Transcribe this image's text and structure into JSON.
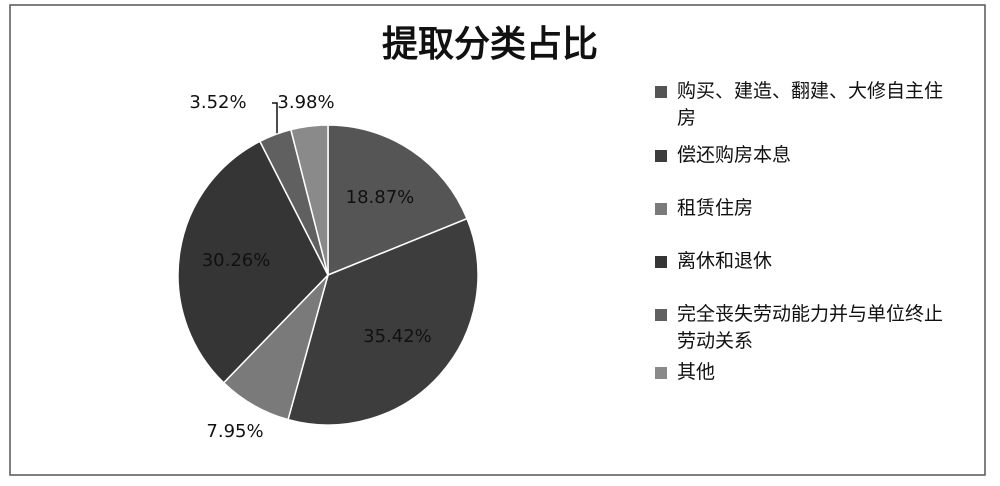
{
  "chart_data": {
    "type": "pie",
    "title": "提取分类占比",
    "categories": [
      "购买、建造、翻建、大修自主住房",
      "偿还购房本息",
      "租赁住房",
      "离休和退休",
      "完全丧失劳动能力并与单位终止劳动关系",
      "其他"
    ],
    "values": [
      18.87,
      35.42,
      7.95,
      30.26,
      3.52,
      3.98
    ],
    "value_labels": [
      "18.87%",
      "35.42%",
      "7.95%",
      "30.26%",
      "3.52%",
      "3.98%"
    ],
    "colors": [
      "#555555",
      "#3d3d3d",
      "#7a7a7a",
      "#353535",
      "#606060",
      "#8a8a8a"
    ],
    "legend": "right"
  }
}
